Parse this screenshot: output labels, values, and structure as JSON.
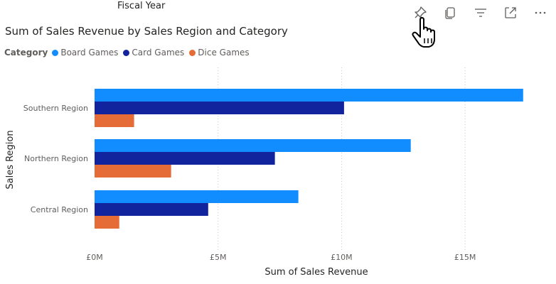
{
  "header": {
    "fiscal_year_label": "Fiscal Year"
  },
  "toolbar": {
    "icons": [
      "pin-icon",
      "copy-icon",
      "filter-icon",
      "focus-mode-icon",
      "more-options-icon"
    ]
  },
  "legend": {
    "title": "Category",
    "items": [
      {
        "label": "Board Games",
        "color": "#118DFF"
      },
      {
        "label": "Card Games",
        "color": "#12239E"
      },
      {
        "label": "Dice Games",
        "color": "#E66C37"
      }
    ]
  },
  "chart_data": {
    "type": "bar",
    "orientation": "horizontal",
    "title": "Sum of Sales Revenue by Sales Region and Category",
    "xlabel": "Sum of Sales Revenue",
    "ylabel": "Sales Region",
    "categories": [
      "Southern Region",
      "Northern Region",
      "Central Region"
    ],
    "series": [
      {
        "name": "Board Games",
        "color": "#118DFF",
        "values": [
          17.35,
          12.8,
          8.25
        ]
      },
      {
        "name": "Card Games",
        "color": "#12239E",
        "values": [
          10.1,
          7.3,
          4.6
        ]
      },
      {
        "name": "Dice Games",
        "color": "#E66C37",
        "values": [
          1.6,
          3.1,
          1.0
        ]
      }
    ],
    "xlim": [
      0,
      17.5
    ],
    "xticks": [
      {
        "value": 0,
        "label": "£0M"
      },
      {
        "value": 5,
        "label": "£5M"
      },
      {
        "value": 10,
        "label": "£10M"
      },
      {
        "value": 15,
        "label": "£15M"
      }
    ],
    "grid": "vertical dotted",
    "legend_position": "top-left"
  }
}
